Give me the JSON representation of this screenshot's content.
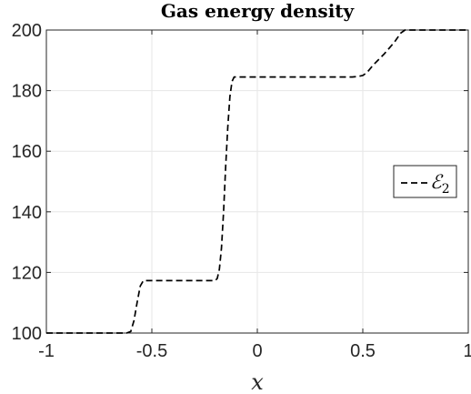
{
  "chart_data": {
    "type": "line",
    "title": "Gas energy density",
    "xlabel": "x",
    "ylabel": "",
    "xlim": [
      -1,
      1
    ],
    "ylim": [
      100,
      200
    ],
    "xticks": [
      -1,
      -0.5,
      0,
      0.5,
      1
    ],
    "xtick_labels": [
      "-1",
      "-0.5",
      "0",
      "0.5",
      "1"
    ],
    "yticks": [
      100,
      120,
      140,
      160,
      180,
      200
    ],
    "ytick_labels": [
      "100",
      "120",
      "140",
      "160",
      "180",
      "200"
    ],
    "grid": true,
    "legend_position": "right",
    "series": [
      {
        "name": "ℰ2",
        "style": "dashed",
        "color": "#000000",
        "x": [
          -1.0,
          -0.62,
          -0.6,
          -0.585,
          -0.57,
          -0.555,
          -0.54,
          -0.3,
          -0.2,
          -0.19,
          -0.18,
          -0.17,
          -0.16,
          -0.15,
          -0.14,
          -0.13,
          -0.12,
          -0.11,
          0.0,
          0.2,
          0.4,
          0.45,
          0.48,
          0.5,
          0.52,
          0.55,
          0.6,
          0.65,
          0.68,
          0.7,
          1.0
        ],
        "y": [
          100,
          100,
          100.5,
          104,
          110,
          115.5,
          117.3,
          117.3,
          117.3,
          118,
          121,
          128,
          140,
          155,
          168,
          178,
          183,
          184.5,
          184.5,
          184.5,
          184.5,
          184.5,
          184.7,
          185,
          186,
          188.5,
          192,
          196,
          199,
          200,
          200
        ]
      }
    ]
  }
}
